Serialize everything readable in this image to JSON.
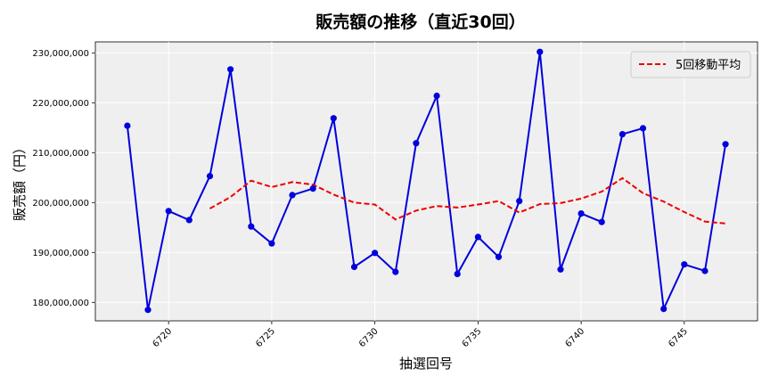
{
  "chart_data": {
    "type": "line",
    "title": "販売額の推移（直近30回）",
    "xlabel": "抽選回号",
    "ylabel": "販売額（円）",
    "x": [
      6718,
      6719,
      6720,
      6721,
      6722,
      6723,
      6724,
      6725,
      6726,
      6727,
      6728,
      6729,
      6730,
      6731,
      6732,
      6733,
      6734,
      6735,
      6736,
      6737,
      6738,
      6739,
      6740,
      6741,
      6742,
      6743,
      6744,
      6745,
      6746,
      6747
    ],
    "xlim": [
      6716.45,
      6748.55
    ],
    "ylim": [
      176300000,
      232200000
    ],
    "x_ticks": [
      6720,
      6725,
      6730,
      6735,
      6740,
      6745
    ],
    "y_ticks": [
      180000000,
      190000000,
      200000000,
      210000000,
      220000000,
      230000000
    ],
    "y_tick_labels": [
      "180,000,000",
      "190,000,000",
      "200,000,000",
      "210,000,000",
      "220,000,000",
      "230,000,000"
    ],
    "grid": true,
    "legend_position": "top-right",
    "series": [
      {
        "name": "",
        "color": "#0000dd",
        "style": "solid-markers",
        "values": [
          215400000,
          178500000,
          198300000,
          196500000,
          205300000,
          226700000,
          195200000,
          191800000,
          201500000,
          202800000,
          216900000,
          187100000,
          189900000,
          186100000,
          211900000,
          221400000,
          185700000,
          193100000,
          189100000,
          200300000,
          230200000,
          186600000,
          197800000,
          196100000,
          213700000,
          214900000,
          178700000,
          187600000,
          186300000,
          211700000
        ]
      },
      {
        "name": "5回移動平均",
        "color": "#ee0000",
        "style": "dashed",
        "values": [
          null,
          null,
          null,
          null,
          198800000,
          201100000,
          204400000,
          203100000,
          204100000,
          203600000,
          201600000,
          200000000,
          199600000,
          196600000,
          198400000,
          199300000,
          199000000,
          199600000,
          200300000,
          198000000,
          199700000,
          199900000,
          200800000,
          202200000,
          204900000,
          201900000,
          200200000,
          198100000,
          196200000,
          195800000
        ]
      }
    ]
  }
}
